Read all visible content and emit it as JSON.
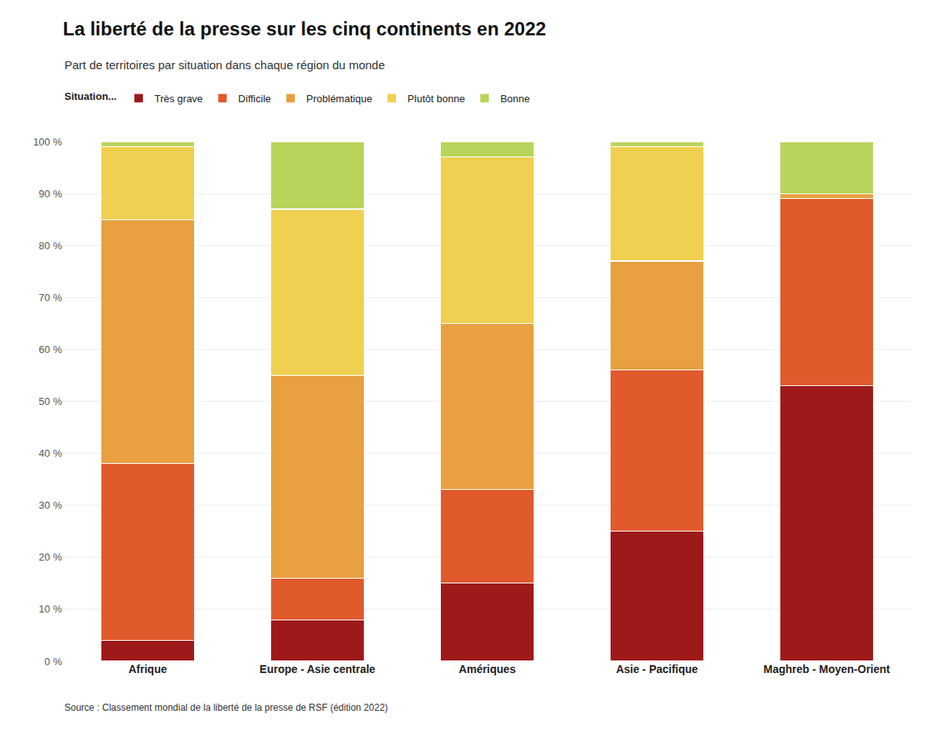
{
  "chart_data": {
    "type": "bar",
    "stacked": true,
    "title": "La liberté de la presse sur les cinq continents en 2022",
    "subtitle": "Part de territoires par situation dans chaque région du monde",
    "legend_title": "Situation...",
    "legend": "top left",
    "source": "Source : Classement mondial de la liberté de la presse de RSF (édition 2022)",
    "categories": [
      "Afrique",
      "Europe - Asie centrale",
      "Amériques",
      "Asie - Pacifique",
      "Maghreb - Moyen-Orient"
    ],
    "series": [
      {
        "name": "Très grave",
        "color": "#9e1a1a",
        "values": [
          4,
          8,
          15,
          25,
          53
        ]
      },
      {
        "name": "Difficile",
        "color": "#e05a2b",
        "values": [
          34,
          8,
          18,
          31,
          36
        ]
      },
      {
        "name": "Problématique",
        "color": "#e8a040",
        "values": [
          47,
          39,
          32,
          21,
          1
        ]
      },
      {
        "name": "Plutôt bonne",
        "color": "#f0d050",
        "values": [
          14,
          32,
          32,
          22,
          0
        ]
      },
      {
        "name": "Bonne",
        "color": "#b8d45a",
        "values": [
          1,
          13,
          3,
          1,
          10
        ]
      }
    ],
    "ylim": [
      0,
      100
    ],
    "yticks": [
      {
        "value": 0,
        "label": "0 %"
      },
      {
        "value": 10,
        "label": "10 %"
      },
      {
        "value": 20,
        "label": "20 %"
      },
      {
        "value": 30,
        "label": "30 %"
      },
      {
        "value": 40,
        "label": "40 %"
      },
      {
        "value": 50,
        "label": "50 %"
      },
      {
        "value": 60,
        "label": "60 %"
      },
      {
        "value": 70,
        "label": "70 %"
      },
      {
        "value": 80,
        "label": "80 %"
      },
      {
        "value": 90,
        "label": "90 %"
      },
      {
        "value": 100,
        "label": "100 %"
      }
    ],
    "grid": true
  }
}
